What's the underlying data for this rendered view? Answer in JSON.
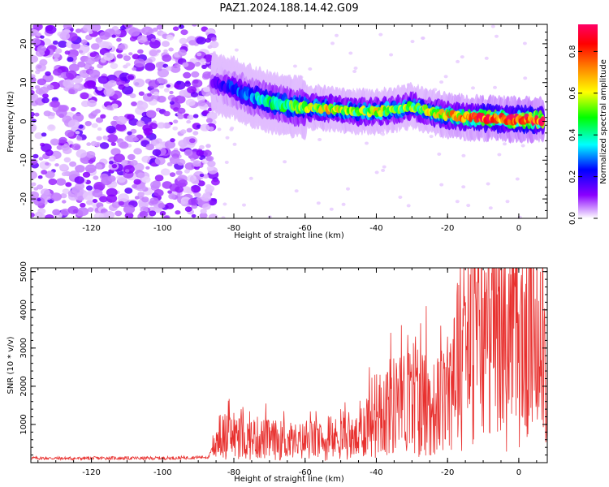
{
  "title": "PAZ1.2024.188.14.42.G09",
  "chart_data": [
    {
      "type": "heatmap",
      "xlabel": "Height of straight line (km)",
      "ylabel": "Frequency (Hz)",
      "xlim": [
        -137,
        8
      ],
      "ylim": [
        -25,
        25
      ],
      "xticks": [
        "-120",
        "-100",
        "-80",
        "-60",
        "-40",
        "-20",
        "0"
      ],
      "yticks": [
        "-20",
        "-10",
        "0",
        "10",
        "20"
      ],
      "colorbar": {
        "label": "Normalized spectral amplitude",
        "ticks": [
          "0.0",
          "0.2",
          "0.4",
          "0.6",
          "0.8"
        ],
        "range": [
          0,
          0.93
        ],
        "colormap": [
          "#ffffff",
          "#8a00ff",
          "#0000ff",
          "#00ffff",
          "#00ff00",
          "#ffff00",
          "#ff8000",
          "#ff0000",
          "#ff0066"
        ]
      },
      "signal_track": {
        "x": [
          -86,
          -80,
          -75,
          -70,
          -65,
          -60,
          -55,
          -50,
          -45,
          -40,
          -35,
          -30,
          -25,
          -20,
          -15,
          -10,
          -5,
          0,
          7
        ],
        "freq_hz": [
          10,
          8.5,
          6.5,
          5,
          4,
          3.5,
          3.5,
          3,
          2.5,
          2.5,
          3,
          4,
          2.5,
          1.5,
          1,
          0.8,
          0.6,
          0.5,
          0.3
        ],
        "amplitude": [
          0.12,
          0.25,
          0.3,
          0.4,
          0.45,
          0.5,
          0.6,
          0.55,
          0.5,
          0.55,
          0.5,
          0.5,
          0.55,
          0.62,
          0.72,
          0.82,
          0.78,
          0.9,
          0.85
        ]
      },
      "noise_region_x": [
        -137,
        -85
      ]
    },
    {
      "type": "line",
      "xlabel": "Height of straight line (km)",
      "ylabel": "SNR (10 * v/v)",
      "xlim": [
        -137,
        8
      ],
      "ylim": [
        0,
        5100
      ],
      "xticks": [
        "-120",
        "-100",
        "-80",
        "-60",
        "-40",
        "-20",
        "0"
      ],
      "yticks": [
        "1000",
        "2000",
        "3000",
        "4000",
        "5000"
      ],
      "color": "#e8312f",
      "series": [
        {
          "x": [
            -137,
            -125,
            -115,
            -105,
            -95,
            -87,
            -85,
            -82,
            -78,
            -74,
            -70,
            -66,
            -62,
            -58,
            -54,
            -50,
            -46,
            -42,
            -38,
            -35,
            -32,
            -29,
            -26,
            -24,
            -20,
            -18,
            -16,
            -12,
            -8,
            -5,
            -3,
            -2,
            0,
            3,
            5,
            7,
            8
          ],
          "y": [
            120,
            110,
            120,
            115,
            125,
            150,
            650,
            700,
            620,
            650,
            600,
            580,
            550,
            600,
            500,
            700,
            600,
            1150,
            1400,
            1500,
            1600,
            1800,
            1500,
            1400,
            1700,
            2900,
            2900,
            3200,
            3150,
            3300,
            2600,
            3100,
            3150,
            3100,
            3350,
            3600,
            2700
          ],
          "peaks": [
            {
              "x": -80,
              "y": 1300
            },
            {
              "x": -78,
              "y": 1400
            },
            {
              "x": -71,
              "y": 1550
            },
            {
              "x": -66,
              "y": 1350
            },
            {
              "x": -57,
              "y": 1350
            },
            {
              "x": -50,
              "y": 1400
            },
            {
              "x": -42,
              "y": 2500
            },
            {
              "x": -39,
              "y": 2300
            },
            {
              "x": -36,
              "y": 3400
            },
            {
              "x": -33,
              "y": 3600
            },
            {
              "x": -29,
              "y": 3300
            },
            {
              "x": -26,
              "y": 4100
            },
            {
              "x": -20,
              "y": 3300
            },
            {
              "x": -15,
              "y": 4200
            },
            {
              "x": -11,
              "y": 4000
            },
            {
              "x": -8,
              "y": 4300
            },
            {
              "x": -4,
              "y": 5100
            },
            {
              "x": -1,
              "y": 4600
            },
            {
              "x": 3,
              "y": 4800
            },
            {
              "x": 6,
              "y": 5000
            }
          ],
          "dips": [
            {
              "x": -74,
              "y": 300
            },
            {
              "x": -62,
              "y": 250
            },
            {
              "x": -55,
              "y": 350
            },
            {
              "x": -45,
              "y": 250
            },
            {
              "x": -37,
              "y": 200
            },
            {
              "x": -28,
              "y": 150
            },
            {
              "x": -25,
              "y": 200
            },
            {
              "x": -18,
              "y": 1200
            },
            {
              "x": -3,
              "y": 1550
            },
            {
              "x": 7,
              "y": 1800
            }
          ]
        }
      ]
    }
  ]
}
